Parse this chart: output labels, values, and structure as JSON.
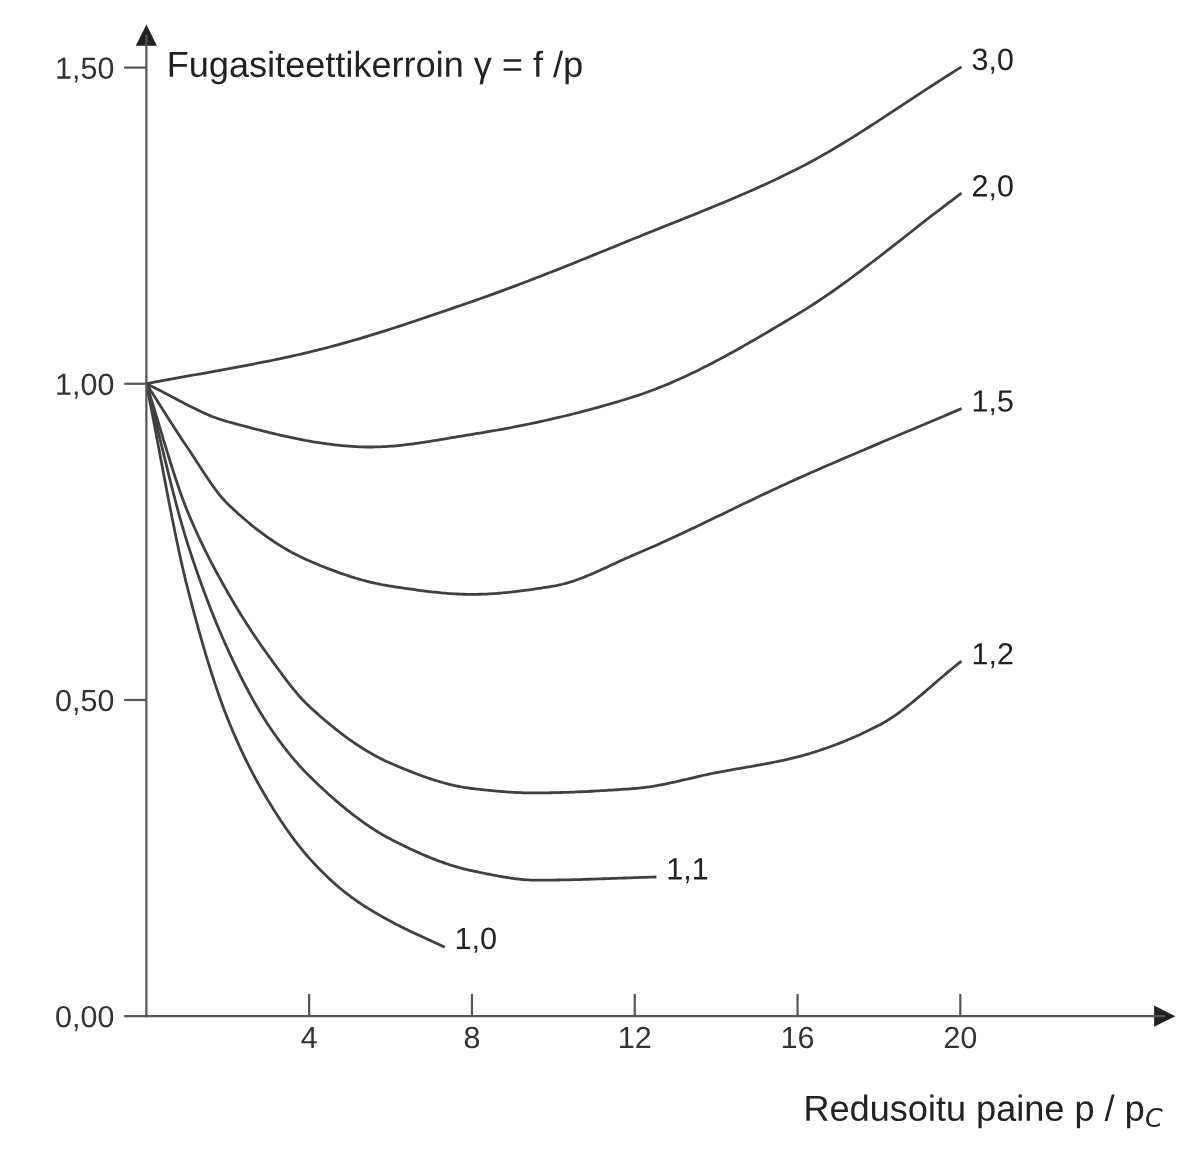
{
  "chart_data": {
    "type": "line",
    "ylabel": "Fugasiteettikerroin γ = f /p",
    "xlabel": "Redusoitu paine p / p$_{C}$",
    "xlim": [
      0,
      25
    ],
    "ylim": [
      0,
      1.55
    ],
    "xticks": [
      4,
      8,
      12,
      16,
      20
    ],
    "yticks": [
      {
        "value": 0,
        "label": "0,00"
      },
      {
        "value": 0.5,
        "label": "0,50"
      },
      {
        "value": 1.0,
        "label": "1,00"
      },
      {
        "value": 1.5,
        "label": "1,50"
      }
    ],
    "grid": false,
    "legend": false,
    "marker": "none",
    "line_style": "solid",
    "series": [
      {
        "name": "3,0",
        "color": "#404040",
        "x": [
          0,
          4,
          8,
          12,
          16,
          20
        ],
        "values": [
          1.0,
          1.05,
          1.13,
          1.23,
          1.34,
          1.5
        ]
      },
      {
        "name": "2,0",
        "color": "#404040",
        "x": [
          0,
          2,
          5.5,
          8,
          12,
          16,
          20
        ],
        "values": [
          1.0,
          0.94,
          0.9,
          0.92,
          0.98,
          1.11,
          1.3
        ]
      },
      {
        "name": "1,5",
        "color": "#404040",
        "x": [
          0,
          1,
          2,
          4,
          6,
          8,
          10,
          12,
          16,
          20
        ],
        "values": [
          1.0,
          0.9,
          0.81,
          0.72,
          0.68,
          0.667,
          0.68,
          0.73,
          0.85,
          0.96
        ]
      },
      {
        "name": "1,2",
        "color": "#404040",
        "x": [
          0,
          1,
          2,
          3,
          4,
          6,
          8,
          9.5,
          12,
          14,
          16,
          18,
          20
        ],
        "values": [
          1.0,
          0.8,
          0.67,
          0.57,
          0.49,
          0.4,
          0.36,
          0.353,
          0.36,
          0.385,
          0.41,
          0.46,
          0.56
        ]
      },
      {
        "name": "1,1",
        "color": "#404040",
        "x": [
          0,
          1,
          2,
          3,
          4,
          6,
          8,
          9.6,
          12.5
        ],
        "values": [
          1.0,
          0.75,
          0.58,
          0.46,
          0.38,
          0.28,
          0.23,
          0.215,
          0.22
        ]
      },
      {
        "name": "1,0",
        "color": "#404040",
        "x": [
          0,
          1,
          2,
          3,
          4,
          5,
          6,
          7.3
        ],
        "values": [
          1.0,
          0.68,
          0.47,
          0.34,
          0.25,
          0.19,
          0.15,
          0.11
        ]
      }
    ]
  }
}
